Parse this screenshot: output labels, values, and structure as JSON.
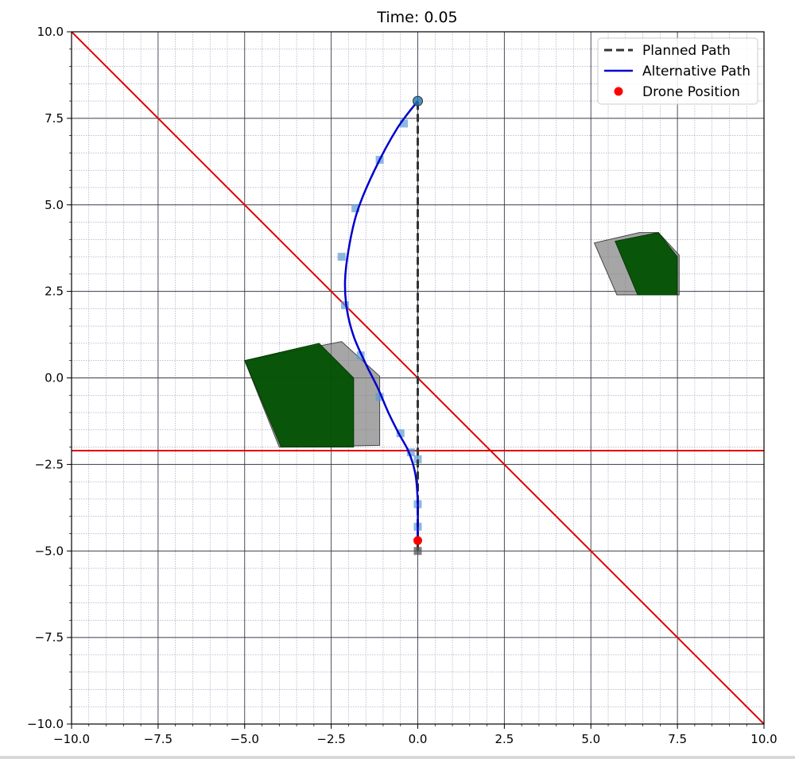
{
  "chart_data": {
    "type": "line",
    "title": "Time: 0.05",
    "xlabel": "",
    "ylabel": "",
    "xlim": [
      -10,
      10
    ],
    "ylim": [
      -10,
      10
    ],
    "x_ticks": [
      -10,
      -7.5,
      -5,
      -2.5,
      0,
      2.5,
      5,
      7.5,
      10
    ],
    "x_tick_labels": [
      "−10.0",
      "−7.5",
      "−5.0",
      "−2.5",
      "0.0",
      "2.5",
      "5.0",
      "7.5",
      "10.0"
    ],
    "y_ticks": [
      10,
      7.5,
      5,
      2.5,
      0,
      -2.5,
      -5,
      -7.5,
      -10
    ],
    "y_tick_labels": [
      "10.0",
      "7.5",
      "5.0",
      "2.5",
      "0.0",
      "−2.5",
      "−5.0",
      "−7.5",
      "−10.0"
    ],
    "grid": true,
    "minor_grid": true,
    "legend_position": "top-right",
    "colors": {
      "planned": "#333333",
      "alternative": "#0000cc",
      "drone": "#ff0000",
      "boundary": "#dd0000",
      "obstacle": "#005000",
      "obstacle_buffer": "#808080",
      "waypoint": "#5b9bd5"
    },
    "legend": [
      {
        "label": "Planned Path",
        "style": "dashed-line",
        "color": "#333333"
      },
      {
        "label": "Alternative Path",
        "style": "line",
        "color": "#0000cc"
      },
      {
        "label": "Drone Position",
        "style": "dot",
        "color": "#ff0000"
      }
    ],
    "series": [
      {
        "name": "Planned Path",
        "kind": "dashed",
        "points": [
          [
            0,
            -5
          ],
          [
            0,
            8
          ]
        ]
      },
      {
        "name": "Alternative Path",
        "kind": "line",
        "points": [
          [
            0,
            -4.7
          ],
          [
            0,
            -4.3
          ],
          [
            0,
            -3.6
          ],
          [
            -0.05,
            -2.9
          ],
          [
            -0.15,
            -2.45
          ],
          [
            -0.3,
            -2.05
          ],
          [
            -0.55,
            -1.6
          ],
          [
            -0.85,
            -1.0
          ],
          [
            -1.15,
            -0.3
          ],
          [
            -1.5,
            0.4
          ],
          [
            -1.85,
            1.2
          ],
          [
            -2.05,
            2.0
          ],
          [
            -2.1,
            2.8
          ],
          [
            -2.0,
            3.7
          ],
          [
            -1.75,
            4.8
          ],
          [
            -1.25,
            6.0
          ],
          [
            -0.6,
            7.2
          ],
          [
            0,
            8.0
          ]
        ]
      },
      {
        "name": "Drone Position",
        "kind": "point",
        "points": [
          [
            0,
            -4.7
          ]
        ]
      }
    ],
    "waypoints": [
      [
        0,
        -4.3
      ],
      [
        0,
        -3.65
      ],
      [
        0,
        -2.35
      ],
      [
        -0.2,
        -2.15
      ],
      [
        -0.5,
        -1.6
      ],
      [
        -1.1,
        -0.55
      ],
      [
        -1.65,
        0.65
      ],
      [
        -2.1,
        2.1
      ],
      [
        -2.2,
        3.5
      ],
      [
        -1.8,
        4.9
      ],
      [
        -1.1,
        6.3
      ],
      [
        -0.4,
        7.35
      ]
    ],
    "endpoints": {
      "start": [
        0,
        -5
      ],
      "goal": [
        0,
        8
      ]
    },
    "boundary_lines": [
      {
        "from": [
          -10,
          10
        ],
        "to": [
          10,
          -10
        ]
      },
      {
        "from": [
          -10,
          -2.1
        ],
        "to": [
          10,
          -2.1
        ]
      }
    ],
    "obstacles": [
      {
        "buffer": [
          [
            -5.0,
            0.5
          ],
          [
            -2.2,
            1.05
          ],
          [
            -1.1,
            0.05
          ],
          [
            -1.1,
            -1.95
          ],
          [
            -4.0,
            -2.0
          ]
        ],
        "core": [
          [
            -5.0,
            0.5
          ],
          [
            -2.85,
            1.0
          ],
          [
            -1.85,
            0.0
          ],
          [
            -1.85,
            -2.0
          ],
          [
            -3.95,
            -2.0
          ]
        ]
      },
      {
        "buffer": [
          [
            5.1,
            3.9
          ],
          [
            6.4,
            4.2
          ],
          [
            6.95,
            4.2
          ],
          [
            7.55,
            3.55
          ],
          [
            7.55,
            2.4
          ],
          [
            5.75,
            2.4
          ]
        ],
        "core": [
          [
            5.7,
            3.95
          ],
          [
            6.95,
            4.2
          ],
          [
            7.5,
            3.5
          ],
          [
            7.5,
            2.4
          ],
          [
            6.35,
            2.4
          ]
        ]
      }
    ]
  }
}
